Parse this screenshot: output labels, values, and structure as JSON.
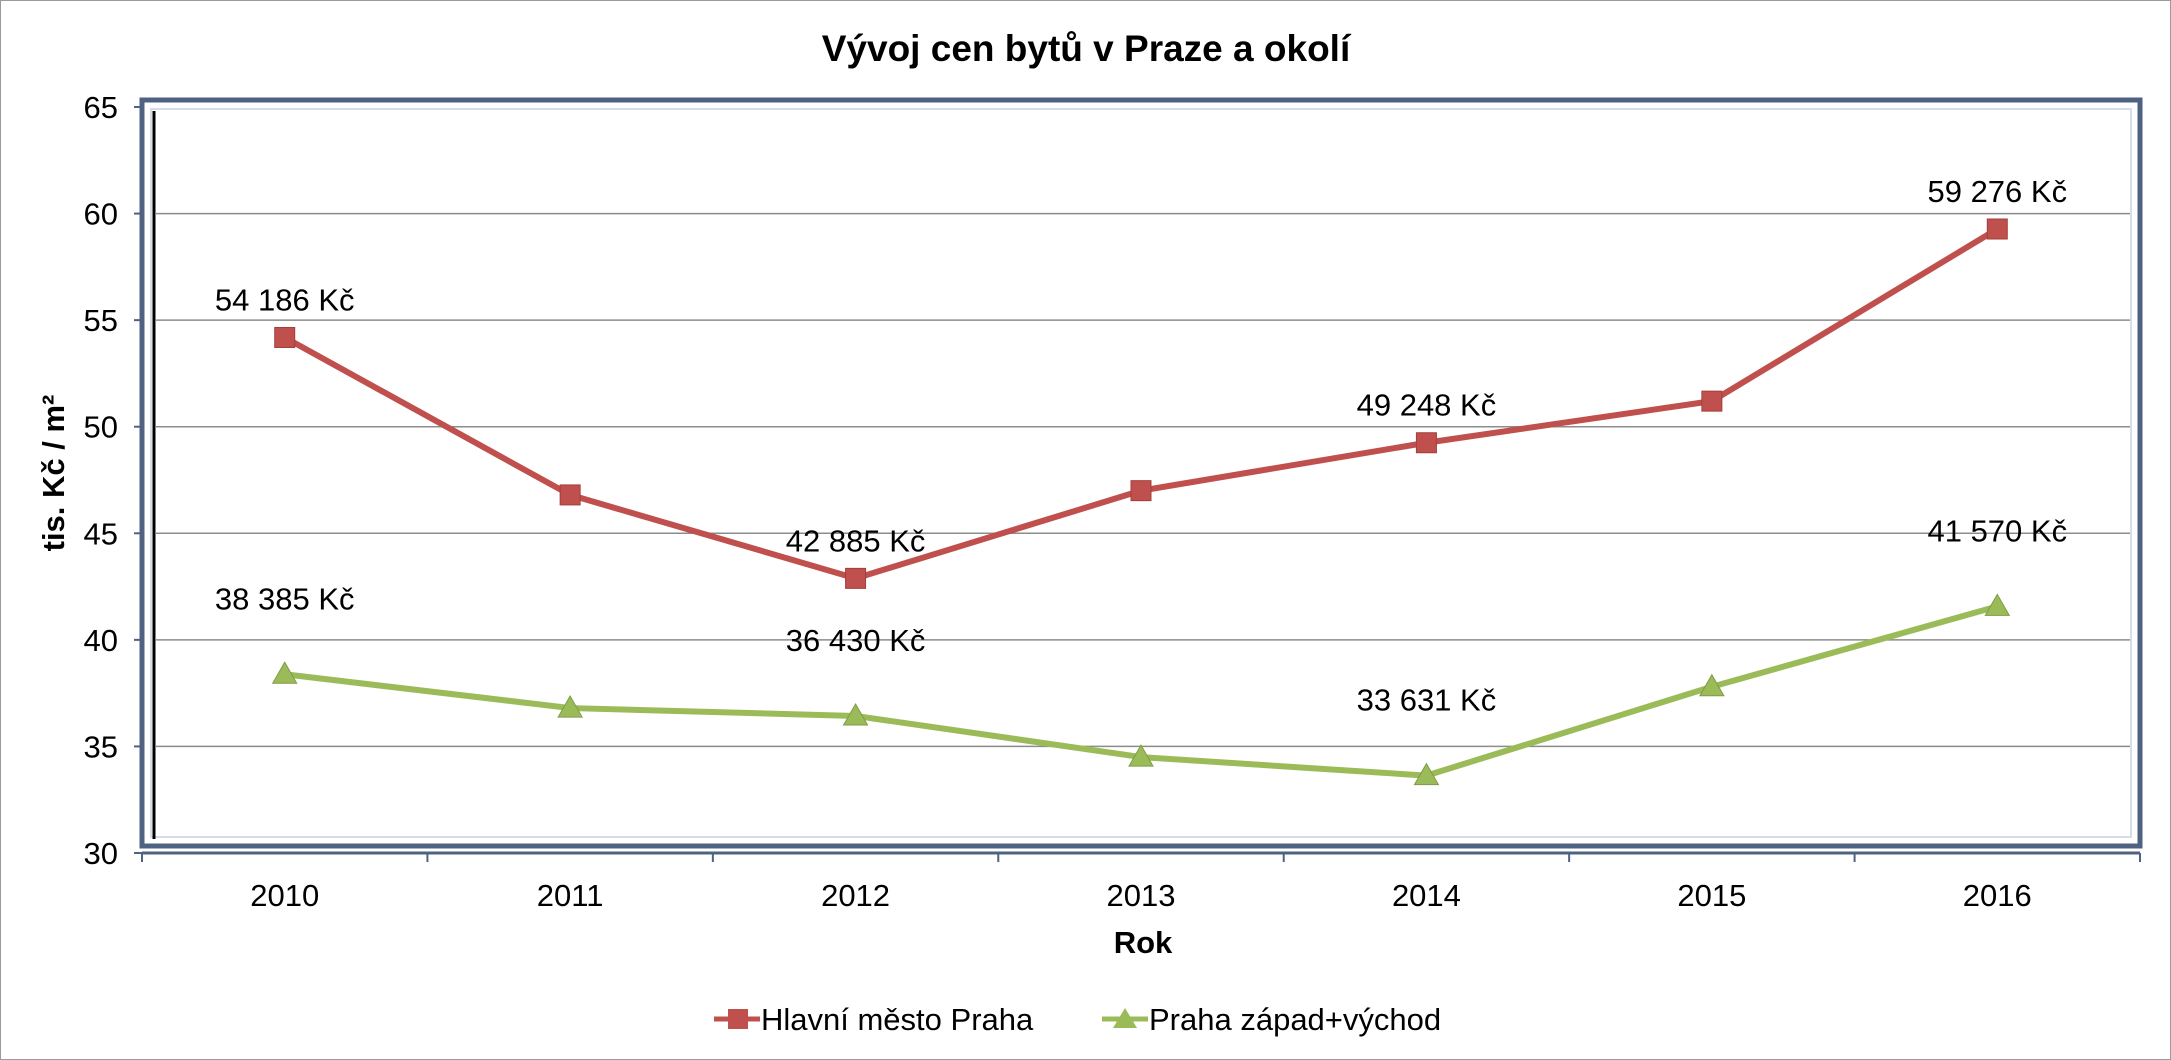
{
  "chart_data": {
    "type": "line",
    "title": "Vývoj cen bytů v Praze a okolí",
    "xlabel": "Rok",
    "ylabel": "tis. Kč / m²",
    "ylim": [
      30,
      65
    ],
    "yticks": [
      "30",
      "35",
      "40",
      "45",
      "50",
      "55",
      "60",
      "65"
    ],
    "categories": [
      "2010",
      "2011",
      "2012",
      "2013",
      "2014",
      "2015",
      "2016"
    ],
    "grid": "horizontal",
    "legend": "bottom",
    "series": [
      {
        "name": "Hlavní město Praha",
        "color": "#c0504d",
        "marker": "square",
        "values": [
          54.186,
          46.8,
          42.885,
          47.0,
          49.248,
          51.2,
          59.276
        ],
        "labels": [
          "54 186 Kč",
          null,
          "42 885 Kč",
          null,
          "49 248 Kč",
          null,
          "59 276 Kč"
        ]
      },
      {
        "name": "Praha západ+východ",
        "color": "#9bbb59",
        "marker": "triangle",
        "values": [
          38.385,
          36.8,
          36.43,
          34.5,
          33.631,
          37.8,
          41.57
        ],
        "labels": [
          "38 385 Kč",
          null,
          "36 430 Kč",
          null,
          "33 631 Kč",
          null,
          "41 570 Kč"
        ]
      }
    ]
  }
}
